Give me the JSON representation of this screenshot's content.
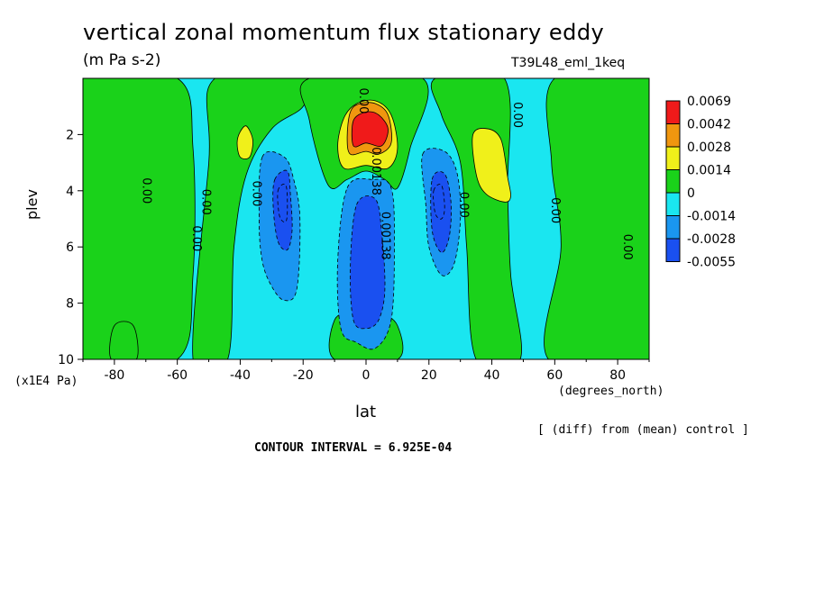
{
  "header": {
    "title": "vertical zonal momentum flux stationary eddy",
    "units": "(m Pa s-2)",
    "run_id": "T39L48_eml_1keq"
  },
  "footer": {
    "diff_note": "[ (diff) from (mean) control ]",
    "contour_interval": "CONTOUR INTERVAL = 6.925E-04"
  },
  "chart_data": {
    "type": "contour",
    "xlabel": "lat",
    "x_units": "(degrees_north)",
    "ylabel": "plev",
    "y_units": "(x1E4 Pa)",
    "xlim": [
      -90,
      90
    ],
    "ylim": [
      0,
      10
    ],
    "y_inverted": true,
    "x_ticks": [
      -80,
      -60,
      -40,
      -20,
      0,
      20,
      40,
      60,
      80
    ],
    "y_ticks": [
      2,
      4,
      6,
      8,
      10
    ],
    "colorbar": {
      "levels": [
        "0.0069",
        "0.0042",
        "0.0028",
        "0.0014",
        "0",
        "-0.0014",
        "-0.0028",
        "-0.0055"
      ],
      "colors": [
        "#f01a1a",
        "#f0960f",
        "#f0f01a",
        "#1ad21a",
        "#1ae6f0",
        "#1a96f0",
        "#1a50f0"
      ]
    },
    "contour_labels": [
      {
        "text": "0.00",
        "x": -2,
        "y": 0.8
      },
      {
        "text": "0.00",
        "x": 47,
        "y": 1.3
      },
      {
        "text": "0.00138",
        "x": 2,
        "y": 3.3
      },
      {
        "text": "0.00",
        "x": -71,
        "y": 4.0
      },
      {
        "text": "0.00",
        "x": -52,
        "y": 4.4
      },
      {
        "text": "0.00",
        "x": -36,
        "y": 4.1
      },
      {
        "text": "0.00",
        "x": -55,
        "y": 5.7
      },
      {
        "text": "0.00138",
        "x": 5,
        "y": 5.6
      },
      {
        "text": "0.00",
        "x": 30,
        "y": 4.5
      },
      {
        "text": "0.00",
        "x": 59,
        "y": 4.7
      },
      {
        "text": "0.00",
        "x": 82,
        "y": 6.0
      }
    ],
    "regions": [
      {
        "level": "pos1",
        "desc": "green",
        "pts": [
          [
            -90,
            0
          ],
          [
            -60,
            0
          ],
          [
            -55,
            2.5
          ],
          [
            -55,
            7
          ],
          [
            -60,
            10
          ],
          [
            -90,
            10
          ]
        ]
      },
      {
        "level": "pos1",
        "pts": [
          [
            -48,
            0
          ],
          [
            -18,
            0
          ],
          [
            -20,
            1
          ],
          [
            -30,
            1.8
          ],
          [
            -38,
            3.4
          ],
          [
            -42,
            6
          ],
          [
            -44,
            10
          ],
          [
            -55,
            10
          ],
          [
            -50,
            3
          ]
        ]
      },
      {
        "level": "pos1",
        "pts": [
          [
            -18,
            0
          ],
          [
            18,
            0
          ],
          [
            14,
            2.5
          ],
          [
            10,
            3.9
          ],
          [
            6,
            3.6
          ],
          [
            0,
            3.3
          ],
          [
            -6,
            3.6
          ],
          [
            -12,
            3.8
          ],
          [
            -18,
            1.5
          ]
        ]
      },
      {
        "level": "pos1",
        "pts": [
          [
            22,
            0
          ],
          [
            44,
            0
          ],
          [
            45,
            4
          ],
          [
            46,
            7
          ],
          [
            49,
            10
          ],
          [
            35,
            10
          ],
          [
            32,
            6
          ],
          [
            30,
            3
          ],
          [
            24,
            1.3
          ]
        ]
      },
      {
        "level": "pos1",
        "pts": [
          [
            60,
            0
          ],
          [
            90,
            0
          ],
          [
            90,
            10
          ],
          [
            58,
            10
          ],
          [
            62,
            6
          ],
          [
            59,
            3
          ]
        ]
      },
      {
        "level": "pos1",
        "pts": [
          [
            -10,
            8.6
          ],
          [
            -4,
            8.4
          ],
          [
            0,
            9.2
          ],
          [
            4,
            8.4
          ],
          [
            10,
            8.8
          ],
          [
            10,
            10
          ],
          [
            -10,
            10
          ]
        ]
      },
      {
        "level": "pos1",
        "pts": [
          [
            -80,
            8.8
          ],
          [
            -74,
            8.8
          ],
          [
            -73,
            10
          ],
          [
            -81,
            10
          ]
        ]
      },
      {
        "level": "pos2",
        "pts": [
          [
            -7,
            1.4
          ],
          [
            -3,
            0.9
          ],
          [
            3,
            0.8
          ],
          [
            8,
            1.3
          ],
          [
            10,
            2.5
          ],
          [
            7,
            3.2
          ],
          [
            0,
            3.1
          ],
          [
            -7,
            3.2
          ],
          [
            -9,
            2.4
          ]
        ]
      },
      {
        "level": "pos2",
        "pts": [
          [
            -40,
            1.9
          ],
          [
            -38,
            1.7
          ],
          [
            -36,
            2.2
          ],
          [
            -37,
            2.8
          ],
          [
            -40,
            2.8
          ],
          [
            -41,
            2.3
          ]
        ]
      },
      {
        "level": "pos2",
        "pts": [
          [
            34,
            2.0
          ],
          [
            39,
            1.8
          ],
          [
            43,
            2.2
          ],
          [
            45,
            3.5
          ],
          [
            46,
            4.2
          ],
          [
            44,
            4.4
          ],
          [
            38,
            4.1
          ],
          [
            35,
            3.4
          ]
        ]
      },
      {
        "level": "pos3",
        "pts": [
          [
            -5,
            1.2
          ],
          [
            -2,
            0.9
          ],
          [
            3,
            0.9
          ],
          [
            7,
            1.3
          ],
          [
            8,
            2.3
          ],
          [
            4,
            2.7
          ],
          [
            0,
            2.6
          ],
          [
            -5,
            2.7
          ],
          [
            -6,
            2.1
          ]
        ]
      },
      {
        "level": "pos4",
        "pts": [
          [
            -4,
            1.5
          ],
          [
            0,
            1.2
          ],
          [
            4,
            1.3
          ],
          [
            7,
            1.8
          ],
          [
            5,
            2.4
          ],
          [
            0,
            2.3
          ],
          [
            -4,
            2.4
          ]
        ]
      },
      {
        "level": "neg1",
        "pts": [
          [
            -33,
            2.8
          ],
          [
            -26,
            2.8
          ],
          [
            -23,
            3.6
          ],
          [
            -21,
            5
          ],
          [
            -22,
            7.5
          ],
          [
            -26,
            7.9
          ],
          [
            -30,
            7.4
          ],
          [
            -33,
            6.5
          ],
          [
            -34,
            5
          ]
        ]
      },
      {
        "level": "neg1",
        "pts": [
          [
            -6,
            3.9
          ],
          [
            2,
            3.6
          ],
          [
            8,
            3.9
          ],
          [
            9,
            6
          ],
          [
            8,
            8.6
          ],
          [
            3,
            9.6
          ],
          [
            -3,
            9.4
          ],
          [
            -8,
            8.9
          ],
          [
            -9,
            6.5
          ]
        ]
      },
      {
        "level": "neg1",
        "pts": [
          [
            18,
            2.7
          ],
          [
            25,
            2.6
          ],
          [
            29,
            3.4
          ],
          [
            30,
            5
          ],
          [
            28,
            6.6
          ],
          [
            24,
            7.0
          ],
          [
            20,
            6.0
          ],
          [
            19,
            4.5
          ]
        ]
      },
      {
        "level": "neg2",
        "pts": [
          [
            -29,
            3.6
          ],
          [
            -25,
            3.3
          ],
          [
            -24,
            4.2
          ],
          [
            -23.5,
            5.4
          ],
          [
            -25,
            6.1
          ],
          [
            -28,
            5.8
          ],
          [
            -29.5,
            4.6
          ]
        ]
      },
      {
        "level": "neg2",
        "pts": [
          [
            -3,
            4.5
          ],
          [
            3,
            4.3
          ],
          [
            5,
            5.5
          ],
          [
            6,
            7.5
          ],
          [
            4,
            8.6
          ],
          [
            0,
            8.9
          ],
          [
            -4,
            8.6
          ],
          [
            -5,
            6.7
          ]
        ]
      },
      {
        "level": "neg2",
        "pts": [
          [
            21,
            3.6
          ],
          [
            25,
            3.4
          ],
          [
            27,
            4.4
          ],
          [
            26.5,
            5.6
          ],
          [
            24,
            6.2
          ],
          [
            21,
            5.4
          ]
        ]
      },
      {
        "level": "neg3",
        "pts": [
          [
            -28,
            4.0
          ],
          [
            -25.5,
            3.8
          ],
          [
            -25,
            4.6
          ],
          [
            -25.5,
            5.1
          ],
          [
            -27.5,
            4.9
          ]
        ]
      },
      {
        "level": "neg3",
        "pts": [
          [
            21.5,
            4.0
          ],
          [
            24,
            3.8
          ],
          [
            25,
            4.6
          ],
          [
            24,
            5.0
          ],
          [
            22,
            4.8
          ]
        ]
      }
    ]
  }
}
